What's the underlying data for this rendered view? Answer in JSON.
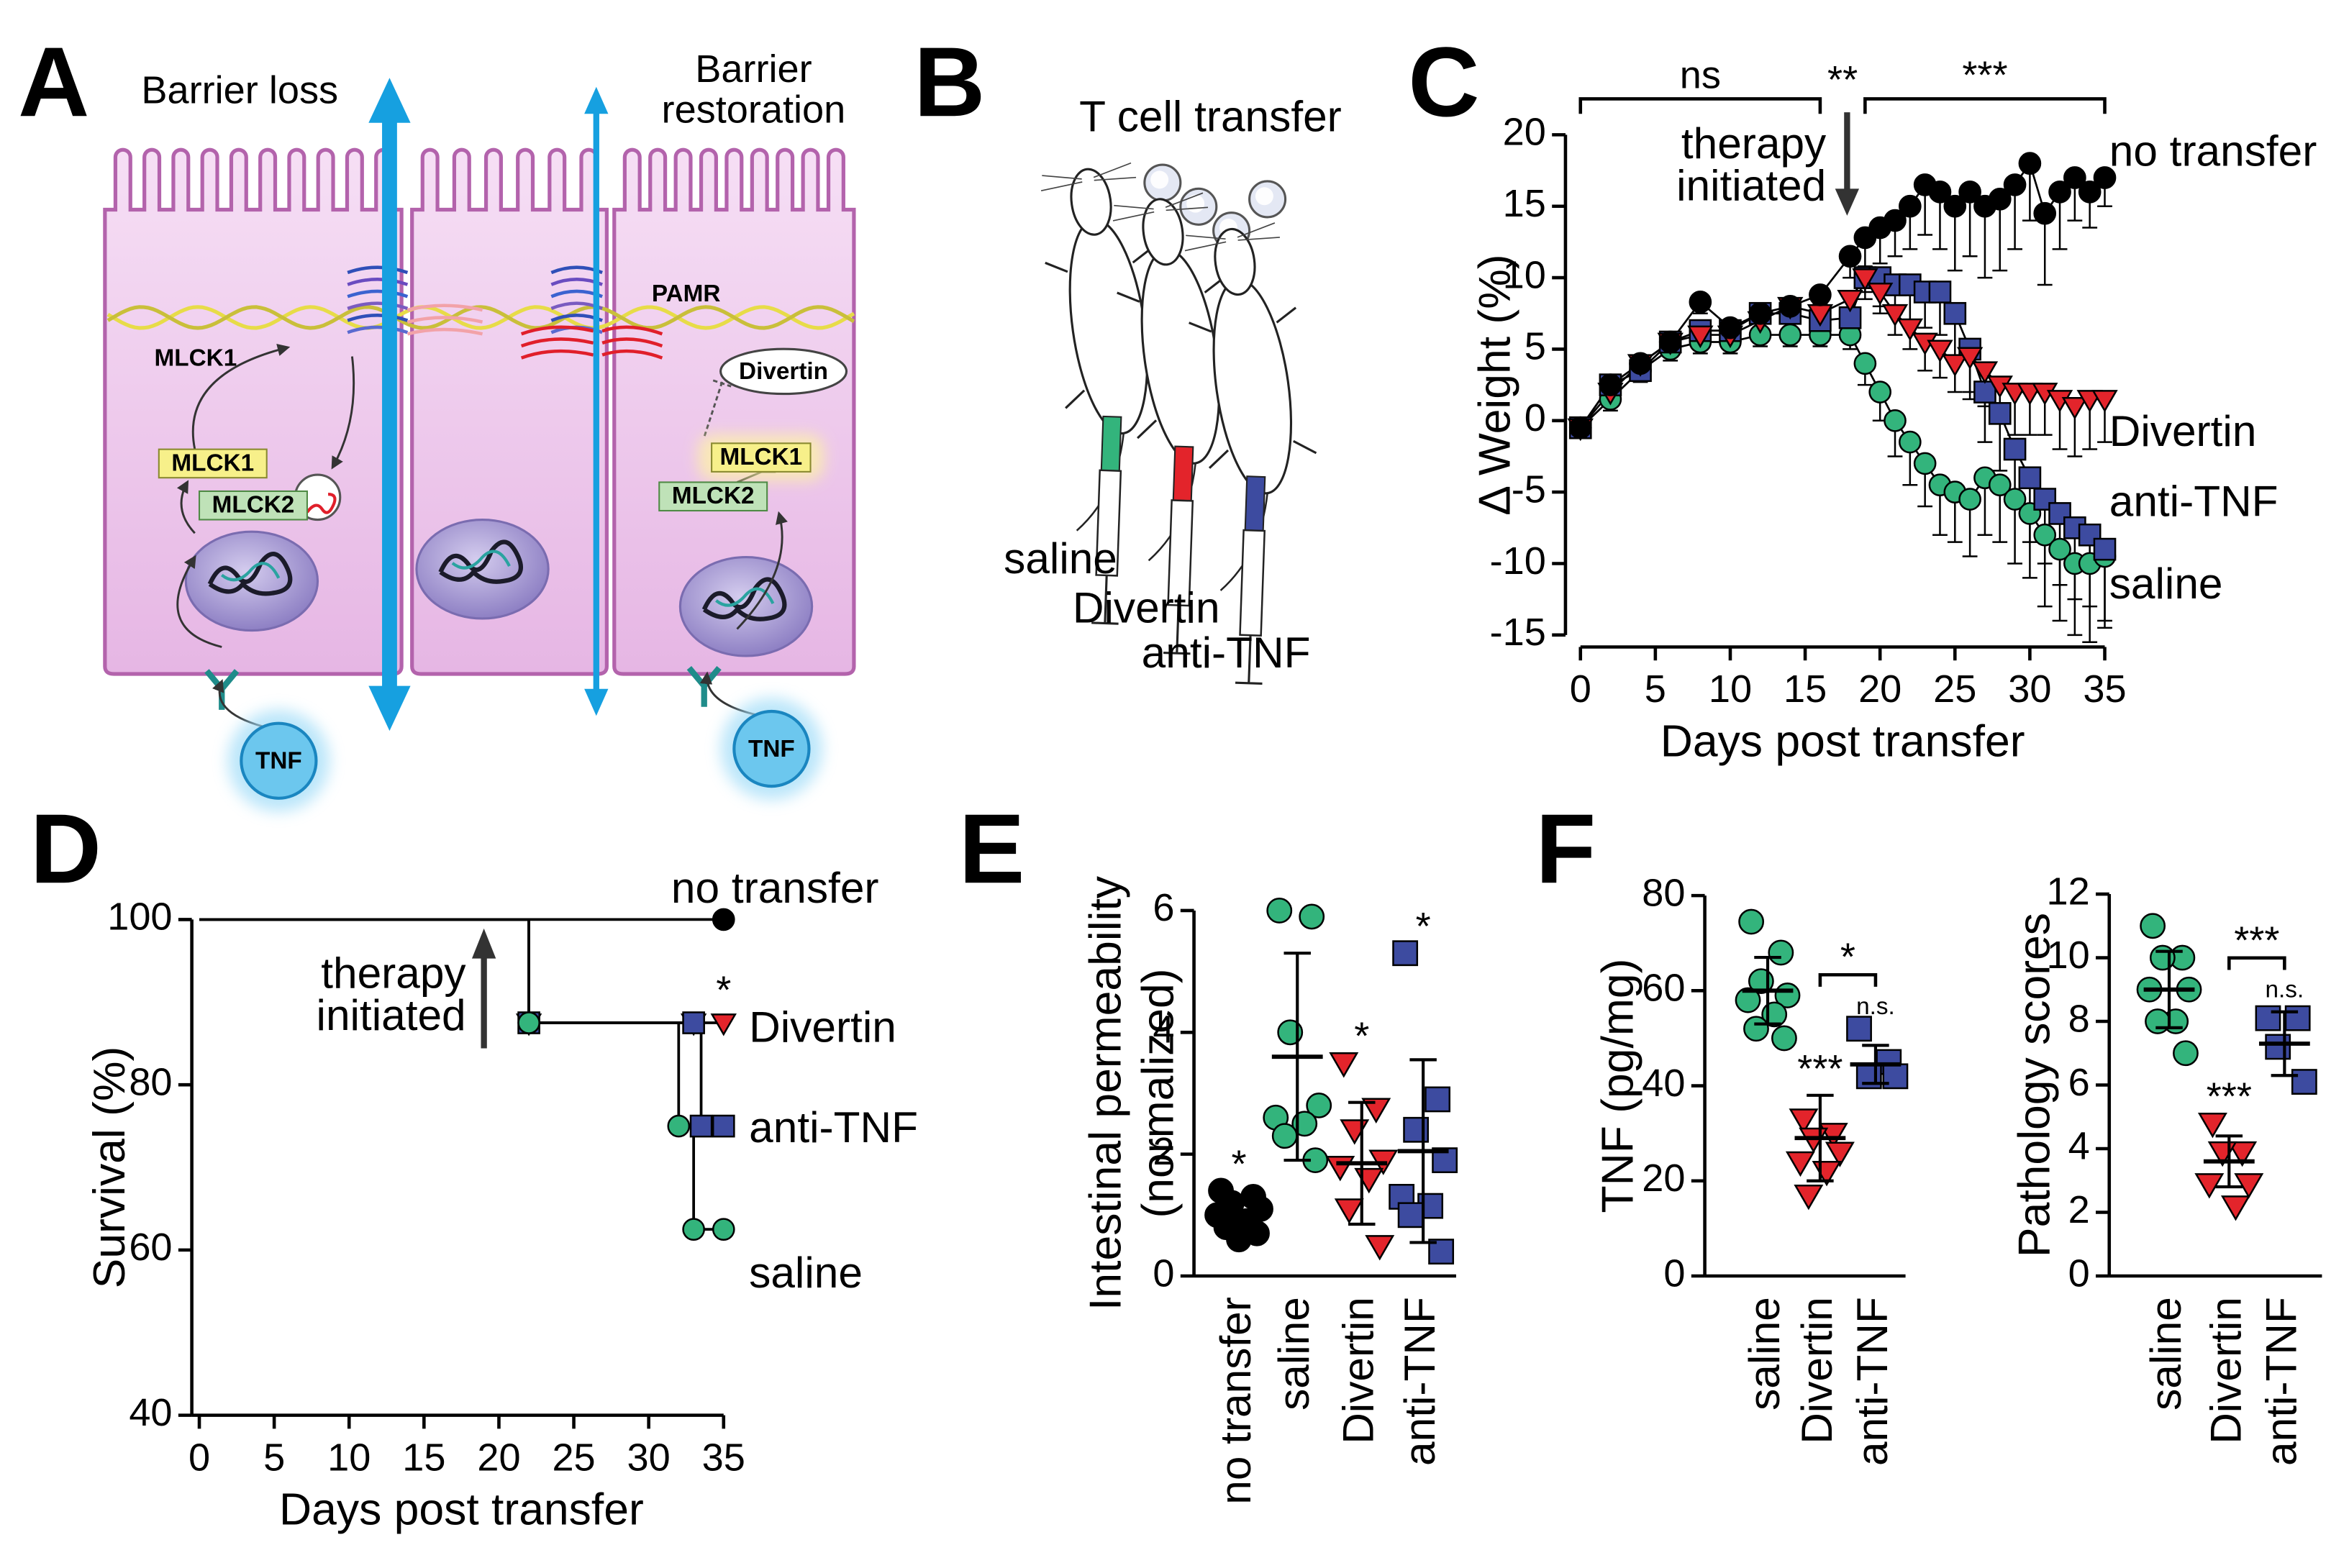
{
  "panel_labels": [
    "A",
    "B",
    "C",
    "D",
    "E",
    "F"
  ],
  "diagram_a": {
    "title_left": "Barrier loss",
    "title_right": [
      "Barrier",
      "restoration"
    ],
    "labels": [
      "MLCK1",
      "MLCK1",
      "MLCK2",
      "PAMR",
      "Divertin",
      "MLCK1",
      "MLCK2",
      "TNF",
      "TNF"
    ]
  },
  "diagram_b": {
    "title": "T cell transfer",
    "groups": [
      "saline",
      "Divertin",
      "anti-TNF"
    ]
  },
  "chart_data": [
    {
      "type": "line",
      "y_label": "Δ Weight (%)",
      "x_label": "Days post transfer",
      "x": [
        0,
        2,
        4,
        6,
        8,
        10,
        12,
        14,
        16,
        18,
        19,
        20,
        21,
        22,
        23,
        24,
        25,
        26,
        27,
        28,
        29,
        30,
        31,
        32,
        33,
        34,
        35
      ],
      "xlim": [
        0,
        35
      ],
      "xticks": [
        0,
        5,
        10,
        15,
        20,
        25,
        30,
        35
      ],
      "ylim": [
        -15,
        20
      ],
      "yticks": [
        -15,
        -10,
        -5,
        0,
        5,
        10,
        15,
        20
      ],
      "line_color": "#000000",
      "series": [
        {
          "name": "no transfer",
          "color": "#000000",
          "marker": "circle",
          "error_direction": "down",
          "values": [
            -0.5,
            2.5,
            4,
            5.5,
            8.3,
            6.5,
            7.5,
            8,
            8.8,
            11.5,
            12.8,
            13.5,
            14,
            15,
            16.5,
            16,
            15,
            16,
            15,
            15.5,
            16.5,
            18,
            14.5,
            16,
            17,
            16,
            17
          ],
          "errors": [
            null,
            null,
            null,
            null,
            0.8,
            null,
            null,
            null,
            0.6,
            1.5,
            2,
            2.5,
            2.5,
            3,
            3.5,
            4,
            4.5,
            4.5,
            5,
            5,
            4.5,
            4,
            5,
            4,
            3,
            2.5,
            2
          ]
        },
        {
          "name": "Divertin",
          "color": "#e3242b",
          "marker": "triangle-down",
          "error_direction": "down",
          "values": [
            -0.5,
            2,
            4,
            5.5,
            6,
            6,
            7,
            8,
            7.5,
            8.5,
            10,
            9,
            7.5,
            6.5,
            5.5,
            5,
            4,
            4.5,
            3.5,
            2.5,
            2,
            2,
            2,
            1.5,
            1,
            1.5,
            1.5
          ],
          "errors": [
            null,
            null,
            null,
            null,
            null,
            null,
            null,
            null,
            1,
            1,
            1,
            1.5,
            1.5,
            1.5,
            2,
            2,
            2,
            2.5,
            2.5,
            2.5,
            3,
            3,
            3,
            3.5,
            3.5,
            3.5,
            3
          ]
        },
        {
          "name": "anti-TNF",
          "color": "#3d4ba0",
          "marker": "square",
          "error_direction": "down",
          "values": [
            -0.5,
            2.5,
            3.5,
            5.5,
            6.3,
            6.3,
            7.5,
            7.5,
            7,
            7.2,
            10,
            10,
            9.5,
            9.5,
            9,
            9,
            7.5,
            5,
            2,
            0.5,
            -2,
            -4,
            -5.5,
            -6.5,
            -7.5,
            -8,
            -9
          ],
          "errors": [
            null,
            null,
            null,
            null,
            null,
            null,
            null,
            null,
            0.8,
            1,
            1.5,
            2,
            2,
            2.5,
            2.5,
            3,
            3,
            3.5,
            3.5,
            4,
            4,
            4.5,
            4.5,
            5,
            5,
            5,
            5
          ]
        },
        {
          "name": "saline",
          "color": "#33b47c",
          "marker": "circle",
          "error_direction": "down",
          "values": [
            -0.5,
            1.5,
            3.5,
            5,
            5.5,
            5.5,
            6,
            6,
            6,
            6,
            4,
            2,
            0,
            -1.5,
            -3,
            -4.5,
            -5,
            -5.5,
            -4,
            -4.5,
            -5.5,
            -6.5,
            -8,
            -9,
            -10,
            -10,
            -9.5
          ],
          "errors": [
            null,
            0.8,
            0.8,
            0.8,
            0.8,
            0.8,
            0.8,
            0.8,
            0.8,
            1,
            1.5,
            2,
            2.5,
            3,
            3,
            3.5,
            3.5,
            4,
            4,
            4,
            4.5,
            4.5,
            5,
            5,
            5,
            5.5,
            5
          ]
        }
      ],
      "brackets": [
        {
          "text": "ns",
          "from": 0,
          "to": 16
        },
        {
          "text": "***",
          "from": 19,
          "to": 35
        }
      ],
      "marker_text": {
        "text": "**",
        "at": 17.5
      },
      "therapy": {
        "text": [
          "therapy",
          "initiated"
        ],
        "at": 17.8
      }
    },
    {
      "type": "step",
      "y_label": "Survival (%)",
      "x_label": "Days post transfer",
      "xlim": [
        0,
        35
      ],
      "xticks": [
        0,
        5,
        10,
        15,
        20,
        25,
        30,
        35
      ],
      "ylim": [
        40,
        100
      ],
      "yticks": [
        40,
        60,
        80,
        100
      ],
      "series": [
        {
          "name": "no transfer",
          "color": "#000000",
          "marker": "circle",
          "x": [
            0,
            35
          ],
          "values": [
            100,
            100
          ]
        },
        {
          "name": "Divertin",
          "color": "#e3242b",
          "marker": "triangle-down",
          "x": [
            0,
            22,
            33,
            35
          ],
          "values": [
            100,
            87.5,
            87.5,
            87.5
          ],
          "significance": "*"
        },
        {
          "name": "anti-TNF",
          "color": "#3d4ba0",
          "marker": "square",
          "x": [
            0,
            22,
            33,
            33.5,
            35
          ],
          "values": [
            100,
            87.5,
            87.5,
            75,
            75
          ]
        },
        {
          "name": "saline",
          "color": "#33b47c",
          "marker": "circle",
          "x": [
            0,
            22,
            32,
            33,
            35
          ],
          "values": [
            100,
            87.5,
            75,
            62.5,
            62.5
          ]
        }
      ],
      "therapy": {
        "text": [
          "therapy",
          "initiated"
        ],
        "at": 19
      }
    },
    {
      "type": "dot",
      "y_label": [
        "Intestinal permeability",
        "(normalized)"
      ],
      "categories": [
        "no transfer",
        "saline",
        "Divertin",
        "anti-TNF"
      ],
      "colors": [
        "#000000",
        "#33b47c",
        "#e3242b",
        "#3d4ba0"
      ],
      "markers": [
        "circle",
        "circle",
        "triangle-down",
        "square"
      ],
      "ylim": [
        0,
        6
      ],
      "yticks": [
        0,
        2,
        4,
        6
      ],
      "points": [
        [
          1.4,
          1.3,
          1.2,
          1.1,
          1.0,
          0.9,
          0.8,
          0.7,
          0.6
        ],
        [
          6.0,
          5.9,
          4.0,
          2.8,
          2.6,
          2.5,
          2.3,
          1.9
        ],
        [
          3.5,
          2.75,
          2.4,
          1.9,
          1.8,
          1.6,
          1.1,
          0.5
        ],
        [
          5.3,
          2.9,
          2.4,
          1.9,
          1.3,
          1.15,
          1.0,
          0.4
        ]
      ],
      "means": [
        1.0,
        3.6,
        1.85,
        2.05
      ],
      "sd": [
        0.3,
        1.7,
        1.0,
        1.5
      ],
      "significance": [
        "*",
        null,
        "*",
        "*"
      ]
    },
    {
      "type": "dot",
      "y_label": "TNF (pg/mg)",
      "categories": [
        "saline",
        "Divertin",
        "anti-TNF"
      ],
      "colors": [
        "#33b47c",
        "#e3242b",
        "#3d4ba0"
      ],
      "markers": [
        "circle",
        "triangle-down",
        "square"
      ],
      "ylim": [
        0,
        80
      ],
      "yticks": [
        0,
        20,
        40,
        60,
        80
      ],
      "points": [
        [
          74.5,
          68,
          62,
          59,
          58,
          55,
          52,
          50
        ],
        [
          33,
          30,
          29,
          26,
          24,
          22,
          17
        ],
        [
          52,
          45,
          42,
          42
        ]
      ],
      "means": [
        60,
        29,
        44.5
      ],
      "sd": [
        7,
        9,
        4
      ],
      "significance": [
        null,
        "***",
        "n.s."
      ],
      "bracket": {
        "text": "*",
        "between": [
          1,
          2
        ]
      }
    },
    {
      "type": "dot",
      "y_label": "Pathology scores",
      "categories": [
        "saline",
        "Divertin",
        "anti-TNF"
      ],
      "colors": [
        "#33b47c",
        "#e3242b",
        "#3d4ba0"
      ],
      "markers": [
        "circle",
        "triangle-down",
        "square"
      ],
      "ylim": [
        0,
        12
      ],
      "yticks": [
        0,
        2,
        4,
        6,
        8,
        10,
        12
      ],
      "points": [
        [
          11,
          10,
          10,
          9,
          9,
          8,
          8,
          7
        ],
        [
          4.8,
          3.9,
          3.9,
          2.9,
          2.9,
          2.2
        ],
        [
          8.1,
          8.1,
          7.2,
          6.1
        ]
      ],
      "means": [
        9,
        3.6,
        7.3
      ],
      "sd": [
        1.2,
        0.8,
        1.0
      ],
      "significance": [
        null,
        "***",
        "n.s."
      ],
      "bracket": {
        "text": "***",
        "between": [
          1,
          2
        ]
      }
    }
  ]
}
